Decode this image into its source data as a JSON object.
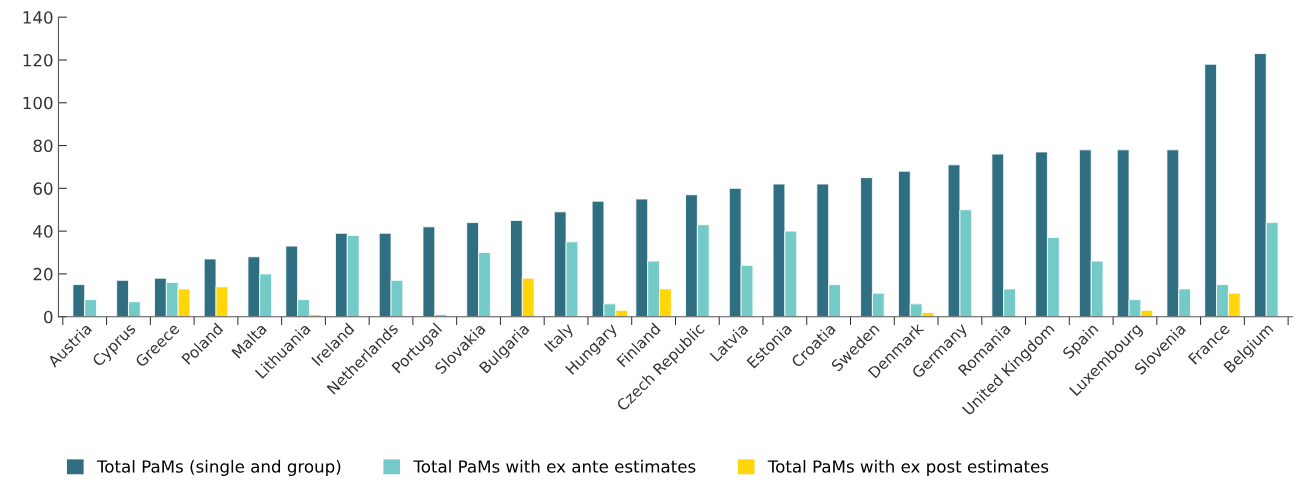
{
  "chart_data": {
    "type": "bar",
    "categories": [
      "Austria",
      "Cyprus",
      "Greece",
      "Poland",
      "Malta",
      "Lithuania",
      "Ireland",
      "Netherlands",
      "Portugal",
      "Slovakia",
      "Bulgaria",
      "Italy",
      "Hungary",
      "Finland",
      "Czech Republic",
      "Latvia",
      "Estonia",
      "Croatia",
      "Sweden",
      "Denmark",
      "Germany",
      "Romania",
      "United Kingdom",
      "Spain",
      "Luxembourg",
      "Slovenia",
      "France",
      "Belgium"
    ],
    "series": [
      {
        "name": "Total PaMs (single and group)",
        "color": "#306e82",
        "values": [
          15,
          17,
          18,
          27,
          28,
          33,
          39,
          39,
          42,
          44,
          45,
          49,
          54,
          55,
          57,
          60,
          62,
          62,
          65,
          68,
          71,
          76,
          77,
          78,
          78,
          78,
          118,
          123
        ]
      },
      {
        "name": "Total PaMs with ex ante estimates",
        "color": "#74cac6",
        "values": [
          8,
          7,
          16,
          null,
          20,
          8,
          38,
          17,
          1,
          30,
          null,
          35,
          6,
          26,
          43,
          24,
          40,
          15,
          11,
          6,
          50,
          13,
          37,
          26,
          8,
          13,
          15,
          44
        ]
      },
      {
        "name": "Total PaMs with ex post estimates",
        "color": "#ffd60a",
        "values": [
          null,
          null,
          13,
          14,
          null,
          1,
          null,
          null,
          null,
          null,
          18,
          null,
          3,
          13,
          null,
          null,
          null,
          null,
          null,
          2,
          null,
          null,
          null,
          null,
          3,
          null,
          11,
          null
        ]
      }
    ],
    "ylim": [
      0,
      140
    ],
    "yticks": [
      0,
      20,
      40,
      60,
      80,
      100,
      120,
      140
    ],
    "grid": false,
    "legend": "bottom"
  }
}
